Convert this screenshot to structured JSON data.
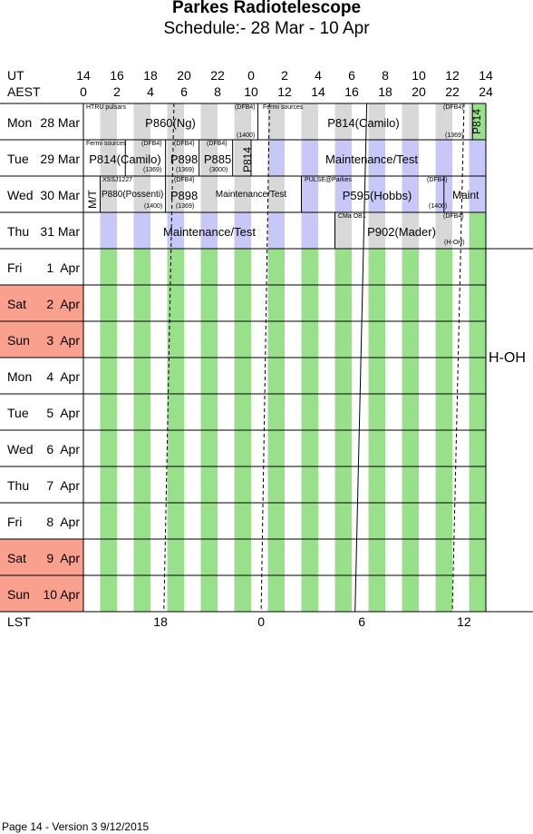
{
  "title": "Parkes Radiotelescope",
  "subtitle": "Schedule:- 28 Mar - 10 Apr",
  "ut_label": "UT",
  "aest_label": "AEST",
  "ut_ticks": [
    "14",
    "16",
    "18",
    "20",
    "22",
    "0",
    "2",
    "4",
    "6",
    "8",
    "10",
    "12",
    "14"
  ],
  "aest_ticks": [
    "0",
    "2",
    "4",
    "6",
    "8",
    "10",
    "12",
    "14",
    "16",
    "18",
    "20",
    "22",
    "24"
  ],
  "lst_label": "LST",
  "lst_ticks": [
    "18",
    "0",
    "6",
    "12"
  ],
  "side_label": "H-OH",
  "days": [
    {
      "dow": "Mon",
      "date": "28 Mar",
      "weekend": false
    },
    {
      "dow": "Tue",
      "date": "29 Mar",
      "weekend": false
    },
    {
      "dow": "Wed",
      "date": "30 Mar",
      "weekend": false
    },
    {
      "dow": "Thu",
      "date": "31 Mar",
      "weekend": false
    },
    {
      "dow": "Fri",
      "date": "1  Apr",
      "weekend": false
    },
    {
      "dow": "Sat",
      "date": "2  Apr",
      "weekend": true
    },
    {
      "dow": "Sun",
      "date": "3  Apr",
      "weekend": true
    },
    {
      "dow": "Mon",
      "date": "4  Apr",
      "weekend": false
    },
    {
      "dow": "Tue",
      "date": "5  Apr",
      "weekend": false
    },
    {
      "dow": "Wed",
      "date": "6  Apr",
      "weekend": false
    },
    {
      "dow": "Thu",
      "date": "7  Apr",
      "weekend": false
    },
    {
      "dow": "Fri",
      "date": "8  Apr",
      "weekend": false
    },
    {
      "dow": "Sat",
      "date": "9  Apr",
      "weekend": true
    },
    {
      "dow": "Sun",
      "date": "10 Apr",
      "weekend": true
    }
  ],
  "programs": {
    "mon_p860": {
      "name": "P860(Ng)",
      "project": "HTRU pulsars",
      "receiver": "(DFB4)",
      "freq": "(1400)"
    },
    "mon_p814": {
      "name": "P814(Camilo)",
      "project": "Fermi sources",
      "receiver": "(DFB4)",
      "freq": "(1369)"
    },
    "mon_p814_v": {
      "name": "P814"
    },
    "tue_p814": {
      "name": "P814(Camilo)",
      "project": "Fermi sources",
      "receiver": "(DFB4)",
      "freq": "(1369)"
    },
    "tue_p898": {
      "name": "P898",
      "receiver": "(DFB4)",
      "freq": "(1369)"
    },
    "tue_p885": {
      "name": "P885",
      "receiver": "(DFB4)",
      "freq": "(3000)"
    },
    "tue_p814_v": {
      "name": "P814"
    },
    "tue_maint": {
      "name": "Maintenance/Test"
    },
    "wed_mt": {
      "name": "M/T"
    },
    "wed_p880": {
      "name": "P880(Possenti)",
      "project": "XSSJ1227",
      "freq": "(1400)"
    },
    "wed_p898": {
      "name": "P898",
      "receiver": "(DFB4)",
      "freq": "(1369)"
    },
    "wed_maint": {
      "name": "Maintenance/Test"
    },
    "wed_p595": {
      "name": "P595(Hobbs)",
      "project": "PULSE@Parkes",
      "receiver": "(DFB4)",
      "freq": "(1400)"
    },
    "wed_maint2": {
      "name": "Maint"
    },
    "thu_maint": {
      "name": "Maintenance/Test"
    },
    "thu_p902": {
      "name": "P902(Mader)",
      "project": "CMa OB1",
      "receiver": "(DFB4)",
      "freq": "(H-OH)"
    }
  },
  "footer": "Page 14 - Version 3  9/12/2015",
  "colors": {
    "weekend": "#f9a08f",
    "green": "#98e08a",
    "lavender": "#c8c8f8",
    "grey": "#d8d8d8"
  }
}
